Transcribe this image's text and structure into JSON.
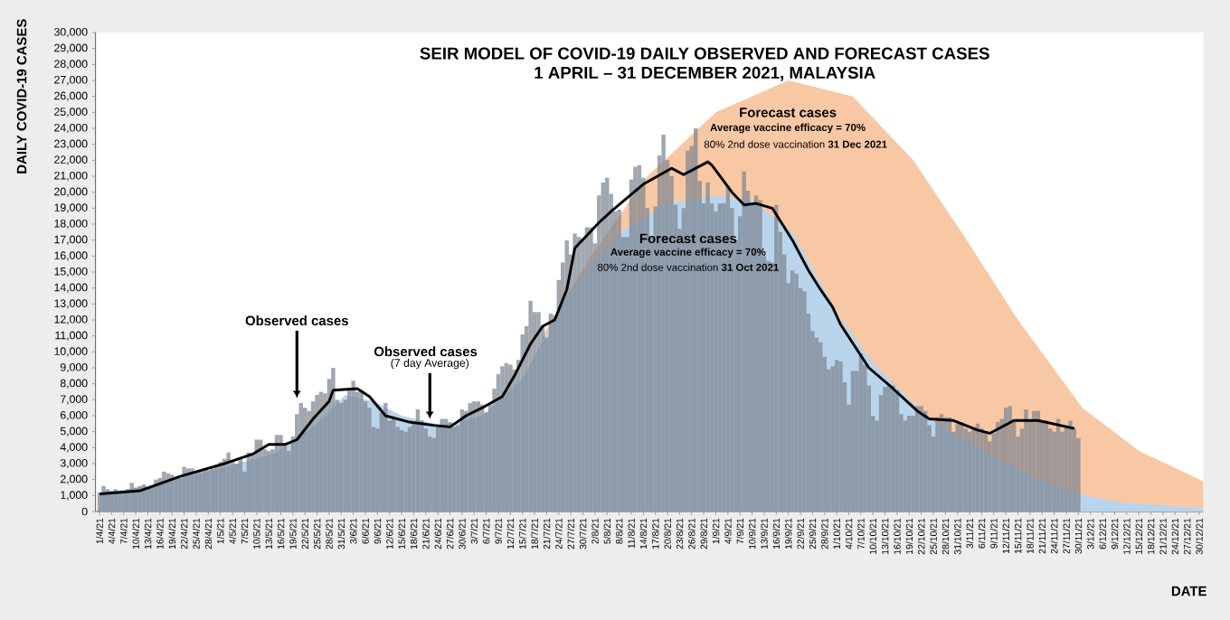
{
  "chart_data": {
    "type": "bar",
    "title": "SEIR MODEL OF COVID-19 DAILY OBSERVED AND FORECAST CASES",
    "subtitle": "1 APRIL – 31 DECEMBER 2021, MALAYSIA",
    "xlabel": "DATE",
    "ylabel": "DAILY COVID-19 CASES",
    "xlim": [
      "2021-03-31",
      "2021-12-31"
    ],
    "ylim": [
      0,
      30000
    ],
    "yticks": [
      0,
      {
        "value": 1000,
        "label": "1,000"
      },
      {
        "value": 2000,
        "label": "2,000"
      },
      {
        "value": 3000,
        "label": "3,000"
      },
      {
        "value": 4000,
        "label": "4,000"
      },
      {
        "value": 5000,
        "label": "5,000"
      },
      {
        "value": 6000,
        "label": "6,000"
      },
      {
        "value": 7000,
        "label": "7,000"
      },
      {
        "value": 8000,
        "label": "8,000"
      },
      {
        "value": 9000,
        "label": "9,000"
      },
      {
        "value": 10000,
        "label": "10,000"
      },
      {
        "value": 11000,
        "label": "11,000"
      },
      {
        "value": 12000,
        "label": "12,000"
      },
      {
        "value": 13000,
        "label": "13,000"
      },
      {
        "value": 14000,
        "label": "14,000"
      },
      {
        "value": 15000,
        "label": "15,000"
      },
      {
        "value": 16000,
        "label": "16,000"
      },
      {
        "value": 17000,
        "label": "17,000"
      },
      {
        "value": 18000,
        "label": "18,000"
      },
      {
        "value": 19000,
        "label": "19,000"
      },
      {
        "value": 20000,
        "label": "20,000"
      },
      {
        "value": 21000,
        "label": "21,000"
      },
      {
        "value": 22000,
        "label": "22,000"
      },
      {
        "value": 23000,
        "label": "23,000"
      },
      {
        "value": 24000,
        "label": "24,000"
      },
      {
        "value": 25000,
        "label": "25,000"
      },
      {
        "value": 26000,
        "label": "26,000"
      },
      {
        "value": 27000,
        "label": "27,000"
      },
      {
        "value": 28000,
        "label": "28,000"
      },
      {
        "value": 29000,
        "label": "29,000"
      },
      {
        "value": 30000,
        "label": "30,000"
      }
    ],
    "xticks": [
      {
        "value": "2021-04-01",
        "label": "1/4/21"
      },
      {
        "value": "2021-04-04",
        "label": "4/4/21"
      },
      {
        "value": "2021-04-07",
        "label": "7/4/21"
      },
      {
        "value": "2021-04-10",
        "label": "10/4/21"
      },
      {
        "value": "2021-04-13",
        "label": "13/4/21"
      },
      {
        "value": "2021-04-16",
        "label": "16/4/21"
      },
      {
        "value": "2021-04-19",
        "label": "19/4/21"
      },
      {
        "value": "2021-04-22",
        "label": "22/4/21"
      },
      {
        "value": "2021-04-25",
        "label": "25/4/21"
      },
      {
        "value": "2021-04-28",
        "label": "28/4/21"
      },
      {
        "value": "2021-05-01",
        "label": "1/5/21"
      },
      {
        "value": "2021-05-04",
        "label": "4/5/21"
      },
      {
        "value": "2021-05-07",
        "label": "7/5/21"
      },
      {
        "value": "2021-05-10",
        "label": "10/5/21"
      },
      {
        "value": "2021-05-13",
        "label": "13/5/21"
      },
      {
        "value": "2021-05-16",
        "label": "16/5/21"
      },
      {
        "value": "2021-05-19",
        "label": "19/5/21"
      },
      {
        "value": "2021-05-22",
        "label": "22/5/21"
      },
      {
        "value": "2021-05-25",
        "label": "25/5/21"
      },
      {
        "value": "2021-05-28",
        "label": "28/5/21"
      },
      {
        "value": "2021-05-31",
        "label": "31/5/21"
      },
      {
        "value": "2021-06-03",
        "label": "3/6/21"
      },
      {
        "value": "2021-06-06",
        "label": "6/6/21"
      },
      {
        "value": "2021-06-09",
        "label": "9/6/21"
      },
      {
        "value": "2021-06-12",
        "label": "12/6/21"
      },
      {
        "value": "2021-06-15",
        "label": "15/6/21"
      },
      {
        "value": "2021-06-18",
        "label": "18/6/21"
      },
      {
        "value": "2021-06-21",
        "label": "21/6/21"
      },
      {
        "value": "2021-06-24",
        "label": "24/6/21"
      },
      {
        "value": "2021-06-27",
        "label": "27/6/21"
      },
      {
        "value": "2021-06-30",
        "label": "30/6/21"
      },
      {
        "value": "2021-07-03",
        "label": "3/7/21"
      },
      {
        "value": "2021-07-06",
        "label": "6/7/21"
      },
      {
        "value": "2021-07-09",
        "label": "9/7/21"
      },
      {
        "value": "2021-07-12",
        "label": "12/7/21"
      },
      {
        "value": "2021-07-15",
        "label": "15/7/21"
      },
      {
        "value": "2021-07-18",
        "label": "18/7/21"
      },
      {
        "value": "2021-07-21",
        "label": "21/7/21"
      },
      {
        "value": "2021-07-24",
        "label": "24/7/21"
      },
      {
        "value": "2021-07-27",
        "label": "27/7/21"
      },
      {
        "value": "2021-07-30",
        "label": "30/7/21"
      },
      {
        "value": "2021-08-02",
        "label": "2/8/21"
      },
      {
        "value": "2021-08-05",
        "label": "5/8/21"
      },
      {
        "value": "2021-08-08",
        "label": "8/8/21"
      },
      {
        "value": "2021-08-11",
        "label": "11/8/21"
      },
      {
        "value": "2021-08-14",
        "label": "14/8/21"
      },
      {
        "value": "2021-08-17",
        "label": "17/8/21"
      },
      {
        "value": "2021-08-20",
        "label": "20/8/21"
      },
      {
        "value": "2021-08-23",
        "label": "23/8/21"
      },
      {
        "value": "2021-08-26",
        "label": "26/8/21"
      },
      {
        "value": "2021-08-29",
        "label": "29/8/21"
      },
      {
        "value": "2021-09-01",
        "label": "1/9/21"
      },
      {
        "value": "2021-09-04",
        "label": "4/9/21"
      },
      {
        "value": "2021-09-07",
        "label": "7/9/21"
      },
      {
        "value": "2021-09-10",
        "label": "10/9/21"
      },
      {
        "value": "2021-09-13",
        "label": "13/9/21"
      },
      {
        "value": "2021-09-16",
        "label": "16/9/21"
      },
      {
        "value": "2021-09-19",
        "label": "19/9/21"
      },
      {
        "value": "2021-09-22",
        "label": "22/9/21"
      },
      {
        "value": "2021-09-25",
        "label": "25/9/21"
      },
      {
        "value": "2021-09-28",
        "label": "28/9/21"
      },
      {
        "value": "2021-10-01",
        "label": "1/10/21"
      },
      {
        "value": "2021-10-04",
        "label": "4/10/21"
      },
      {
        "value": "2021-10-07",
        "label": "7/10/21"
      },
      {
        "value": "2021-10-10",
        "label": "10/10/21"
      },
      {
        "value": "2021-10-13",
        "label": "13/10/21"
      },
      {
        "value": "2021-10-16",
        "label": "16/10/21"
      },
      {
        "value": "2021-10-19",
        "label": "19/10/21"
      },
      {
        "value": "2021-10-22",
        "label": "22/10/21"
      },
      {
        "value": "2021-10-25",
        "label": "25/10/21"
      },
      {
        "value": "2021-10-28",
        "label": "28/10/21"
      },
      {
        "value": "2021-10-31",
        "label": "31/10/21"
      },
      {
        "value": "2021-11-03",
        "label": "3/11/21"
      },
      {
        "value": "2021-11-06",
        "label": "6/11/21"
      },
      {
        "value": "2021-11-09",
        "label": "9/11/21"
      },
      {
        "value": "2021-11-12",
        "label": "12/11/21"
      },
      {
        "value": "2021-11-15",
        "label": "15/11/21"
      },
      {
        "value": "2021-11-18",
        "label": "18/11/21"
      },
      {
        "value": "2021-11-21",
        "label": "21/11/21"
      },
      {
        "value": "2021-11-24",
        "label": "24/11/21"
      },
      {
        "value": "2021-11-27",
        "label": "27/11/21"
      },
      {
        "value": "2021-11-30",
        "label": "30/11/21"
      },
      {
        "value": "2021-12-03",
        "label": "3/12/21"
      },
      {
        "value": "2021-12-06",
        "label": "6/12/21"
      },
      {
        "value": "2021-12-09",
        "label": "9/12/21"
      },
      {
        "value": "2021-12-12",
        "label": "12/12/21"
      },
      {
        "value": "2021-12-15",
        "label": "15/12/21"
      },
      {
        "value": "2021-12-18",
        "label": "18/12/21"
      },
      {
        "value": "2021-12-21",
        "label": "21/12/21"
      },
      {
        "value": "2021-12-24",
        "label": "24/12/21"
      },
      {
        "value": "2021-12-27",
        "label": "27/12/21"
      },
      {
        "value": "2021-12-30",
        "label": "30/12/21"
      }
    ],
    "x": [
      "2021-04-01",
      "2021-04-02",
      "2021-04-03",
      "2021-04-04",
      "2021-04-05",
      "2021-04-06",
      "2021-04-07",
      "2021-04-08",
      "2021-04-09",
      "2021-04-10",
      "2021-04-11",
      "2021-04-12",
      "2021-04-13",
      "2021-04-14",
      "2021-04-15",
      "2021-04-16",
      "2021-04-17",
      "2021-04-18",
      "2021-04-19",
      "2021-04-20",
      "2021-04-21",
      "2021-04-22",
      "2021-04-23",
      "2021-04-24",
      "2021-04-25",
      "2021-04-26",
      "2021-04-27",
      "2021-04-28",
      "2021-04-29",
      "2021-04-30",
      "2021-05-01",
      "2021-05-02",
      "2021-05-03",
      "2021-05-04",
      "2021-05-05",
      "2021-05-06",
      "2021-05-07",
      "2021-05-08",
      "2021-05-09",
      "2021-05-10",
      "2021-05-11",
      "2021-05-12",
      "2021-05-13",
      "2021-05-14",
      "2021-05-15",
      "2021-05-16",
      "2021-05-17",
      "2021-05-18",
      "2021-05-19",
      "2021-05-20",
      "2021-05-21",
      "2021-05-22",
      "2021-05-23",
      "2021-05-24",
      "2021-05-25",
      "2021-05-26",
      "2021-05-27",
      "2021-05-28",
      "2021-05-29",
      "2021-05-30",
      "2021-05-31",
      "2021-06-01",
      "2021-06-02",
      "2021-06-03",
      "2021-06-04",
      "2021-06-05",
      "2021-06-06",
      "2021-06-07",
      "2021-06-08",
      "2021-06-09",
      "2021-06-10",
      "2021-06-11",
      "2021-06-12",
      "2021-06-13",
      "2021-06-14",
      "2021-06-15",
      "2021-06-16",
      "2021-06-17",
      "2021-06-18",
      "2021-06-19",
      "2021-06-20",
      "2021-06-21",
      "2021-06-22",
      "2021-06-23",
      "2021-06-24",
      "2021-06-25",
      "2021-06-26",
      "2021-06-27",
      "2021-06-28",
      "2021-06-29",
      "2021-06-30",
      "2021-07-01",
      "2021-07-02",
      "2021-07-03",
      "2021-07-04",
      "2021-07-05",
      "2021-07-06",
      "2021-07-07",
      "2021-07-08",
      "2021-07-09",
      "2021-07-10",
      "2021-07-11",
      "2021-07-12",
      "2021-07-13",
      "2021-07-14",
      "2021-07-15",
      "2021-07-16",
      "2021-07-17",
      "2021-07-18",
      "2021-07-19",
      "2021-07-20",
      "2021-07-21",
      "2021-07-22",
      "2021-07-23",
      "2021-07-24",
      "2021-07-25",
      "2021-07-26",
      "2021-07-27",
      "2021-07-28",
      "2021-07-29",
      "2021-07-30",
      "2021-07-31",
      "2021-08-01",
      "2021-08-02",
      "2021-08-03",
      "2021-08-04",
      "2021-08-05",
      "2021-08-06",
      "2021-08-07",
      "2021-08-08",
      "2021-08-09",
      "2021-08-10",
      "2021-08-11",
      "2021-08-12",
      "2021-08-13",
      "2021-08-14",
      "2021-08-15",
      "2021-08-16",
      "2021-08-17",
      "2021-08-18",
      "2021-08-19",
      "2021-08-20",
      "2021-08-21",
      "2021-08-22",
      "2021-08-23",
      "2021-08-24",
      "2021-08-25",
      "2021-08-26",
      "2021-08-27",
      "2021-08-28",
      "2021-08-29",
      "2021-08-30",
      "2021-08-31",
      "2021-09-01",
      "2021-09-02",
      "2021-09-03",
      "2021-09-04",
      "2021-09-05",
      "2021-09-06",
      "2021-09-07",
      "2021-09-08",
      "2021-09-09",
      "2021-09-10",
      "2021-09-11",
      "2021-09-12",
      "2021-09-13",
      "2021-09-14",
      "2021-09-15",
      "2021-09-16",
      "2021-09-17",
      "2021-09-18",
      "2021-09-19",
      "2021-09-20",
      "2021-09-21",
      "2021-09-22",
      "2021-09-23",
      "2021-09-24",
      "2021-09-25",
      "2021-09-26",
      "2021-09-27",
      "2021-09-28",
      "2021-09-29",
      "2021-09-30",
      "2021-10-01",
      "2021-10-02",
      "2021-10-03",
      "2021-10-04",
      "2021-10-05",
      "2021-10-06",
      "2021-10-07",
      "2021-10-08",
      "2021-10-09",
      "2021-10-10",
      "2021-10-11",
      "2021-10-12",
      "2021-10-13",
      "2021-10-14",
      "2021-10-15",
      "2021-10-16",
      "2021-10-17",
      "2021-10-18",
      "2021-10-19",
      "2021-10-20",
      "2021-10-21",
      "2021-10-22",
      "2021-10-23",
      "2021-10-24",
      "2021-10-25",
      "2021-10-26",
      "2021-10-27",
      "2021-10-28",
      "2021-10-29",
      "2021-10-30",
      "2021-10-31",
      "2021-11-01",
      "2021-11-02",
      "2021-11-03",
      "2021-11-04",
      "2021-11-05",
      "2021-11-06",
      "2021-11-07",
      "2021-11-08",
      "2021-11-09",
      "2021-11-10",
      "2021-11-11",
      "2021-11-12",
      "2021-11-13",
      "2021-11-14",
      "2021-11-15",
      "2021-11-16",
      "2021-11-17",
      "2021-11-18",
      "2021-11-19",
      "2021-11-20",
      "2021-11-21",
      "2021-11-22",
      "2021-11-23",
      "2021-11-24",
      "2021-11-25",
      "2021-11-26",
      "2021-11-27",
      "2021-11-28",
      "2021-11-29",
      "2021-11-30"
    ],
    "series": [
      {
        "type": "area",
        "color": "#f8c8a4",
        "x": [
          "2021-07-20",
          "2021-08-01",
          "2021-08-15",
          "2021-09-01",
          "2021-09-19",
          "2021-10-05",
          "2021-10-20",
          "2021-11-01",
          "2021-11-15",
          "2021-12-01",
          "2021-12-15",
          "2021-12-31"
        ],
        "values": [
          11000,
          16000,
          21000,
          25000,
          27000,
          26000,
          22000,
          17500,
          12000,
          6500,
          3800,
          1900
        ]
      },
      {
        "type": "area",
        "color": "#b9d5ec",
        "x": [
          "2021-04-01",
          "2021-04-15",
          "2021-05-01",
          "2021-05-15",
          "2021-05-25",
          "2021-06-01",
          "2021-06-08",
          "2021-06-15",
          "2021-06-25",
          "2021-07-05",
          "2021-07-15",
          "2021-07-25",
          "2021-08-01",
          "2021-08-10",
          "2021-08-20",
          "2021-09-01",
          "2021-09-10",
          "2021-09-20",
          "2021-10-01",
          "2021-10-10",
          "2021-10-20",
          "2021-10-25",
          "2021-11-01",
          "2021-11-10",
          "2021-11-20",
          "2021-11-30",
          "2021-12-10",
          "2021-12-20",
          "2021-12-31"
        ],
        "values": [
          1100,
          1700,
          2700,
          3700,
          5500,
          7300,
          6900,
          6000,
          5400,
          6000,
          8300,
          13000,
          15500,
          17800,
          19300,
          19800,
          19500,
          17500,
          12500,
          9300,
          6800,
          5700,
          4600,
          3300,
          2000,
          1100,
          600,
          400,
          200
        ]
      },
      {
        "color": "#7d8590",
        "values": [
          1200,
          1600,
          1400,
          1300,
          1400,
          1200,
          1300,
          1400,
          1800,
          1500,
          1600,
          1700,
          1500,
          1600,
          2000,
          2100,
          2500,
          2400,
          2300,
          2100,
          2100,
          2800,
          2700,
          2700,
          2500,
          2500,
          2600,
          2600,
          2700,
          2900,
          3100,
          3300,
          3700,
          3200,
          3000,
          3400,
          2500,
          3700,
          3600,
          4500,
          4500,
          3900,
          3800,
          3900,
          4800,
          4800,
          4200,
          3800,
          4700,
          6100,
          6800,
          6500,
          6300,
          6900,
          7300,
          7500,
          7400,
          8300,
          9000,
          7000,
          6800,
          7000,
          7700,
          8200,
          7500,
          7600,
          6900,
          6500,
          5300,
          5200,
          6200,
          6800,
          5700,
          5900,
          5300,
          5100,
          5000,
          5300,
          5600,
          6400,
          5700,
          5200,
          4700,
          4600,
          5300,
          5800,
          5800,
          5600,
          5300,
          5400,
          6400,
          6300,
          6800,
          6900,
          6900,
          6700,
          6200,
          6700,
          7700,
          8600,
          9100,
          9300,
          9200,
          8900,
          9500,
          11100,
          11600,
          13200,
          12500,
          12500,
          11600,
          10900,
          12400,
          12300,
          14500,
          15600,
          17000,
          16100,
          17400,
          17200,
          17100,
          17800,
          17800,
          16800,
          19800,
          20600,
          20900,
          19900,
          18800,
          18900,
          17200,
          17200,
          20800,
          21600,
          21700,
          20900,
          19000,
          17200,
          19100,
          22300,
          23600,
          22000,
          21000,
          19200,
          17700,
          19000,
          22600,
          22900,
          24000,
          20700,
          19300,
          20600,
          19300,
          18800,
          19300,
          19300,
          20400,
          19000,
          17000,
          18500,
          21300,
          20100,
          19200,
          19800,
          19500,
          16000,
          15700,
          15600,
          19200,
          17500,
          16100,
          14300,
          15100,
          14900,
          14000,
          13800,
          12400,
          11300,
          10900,
          10600,
          9700,
          8900,
          9100,
          9500,
          9400,
          8100,
          6700,
          8800,
          8800,
          9900,
          9200,
          7900,
          6000,
          5700,
          7300,
          7800,
          7900,
          7900,
          7600,
          6100,
          5700,
          6000,
          6000,
          6600,
          6600,
          6300,
          5400,
          4700,
          5900,
          6100,
          5900,
          5900,
          5000,
          5500,
          5600,
          5200,
          5000,
          5200,
          5500,
          5200,
          5000,
          4400,
          4900,
          5600,
          5800,
          6500,
          6600,
          5600,
          4700,
          5200,
          6400,
          5700,
          6300,
          6300,
          5600,
          5700,
          5200,
          5000,
          5800,
          5000,
          5400,
          5700,
          5200,
          4600
        ]
      },
      {
        "type": "line",
        "color": "#000000",
        "x": [
          "2021-04-01",
          "2021-04-11",
          "2021-04-21",
          "2021-05-02",
          "2021-05-09",
          "2021-05-13",
          "2021-05-17",
          "2021-05-20",
          "2021-05-24",
          "2021-05-28",
          "2021-05-29",
          "2021-06-04",
          "2021-06-07",
          "2021-06-11",
          "2021-06-17",
          "2021-06-23",
          "2021-06-27",
          "2021-07-01",
          "2021-07-05",
          "2021-07-10",
          "2021-07-13",
          "2021-07-17",
          "2021-07-20",
          "2021-07-23",
          "2021-07-26",
          "2021-07-28",
          "2021-07-31",
          "2021-08-03",
          "2021-08-06",
          "2021-08-14",
          "2021-08-21",
          "2021-08-24",
          "2021-08-30",
          "2021-08-31",
          "2021-09-05",
          "2021-09-08",
          "2021-09-11",
          "2021-09-15",
          "2021-09-20",
          "2021-09-24",
          "2021-09-27",
          "2021-09-30",
          "2021-10-02",
          "2021-10-09",
          "2021-10-15",
          "2021-10-21",
          "2021-10-24",
          "2021-10-30",
          "2021-11-05",
          "2021-11-08",
          "2021-11-14",
          "2021-11-20",
          "2021-11-29"
        ],
        "values": [
          1100,
          1300,
          2200,
          3000,
          3600,
          4200,
          4200,
          4500,
          5800,
          6900,
          7600,
          7700,
          7200,
          6000,
          5600,
          5400,
          5300,
          6000,
          6500,
          7200,
          8500,
          10500,
          11600,
          12000,
          13900,
          16500,
          17300,
          18100,
          18800,
          20500,
          21500,
          21100,
          21900,
          21700,
          20000,
          19200,
          19300,
          19000,
          17000,
          15100,
          13900,
          12800,
          11700,
          9000,
          7700,
          6300,
          5800,
          5700,
          5100,
          4900,
          5700,
          5700,
          5200
        ]
      }
    ],
    "annotations": [
      {
        "text": "Observed cases",
        "x": "2021-05-20",
        "y": 7100
      },
      "Observed cases",
      {
        "text": "(7 day Average)",
        "x": "2021-06-22",
        "y": 5800
      },
      "Forecast cases",
      "Average vaccine efficacy = 70%",
      "80% 2nd dose vaccination **31 Oct 2021**",
      "Forecast cases",
      "Average vaccine efficacy = 70%",
      "80% 2nd dose vaccination **31 Dec 2021**"
    ]
  }
}
